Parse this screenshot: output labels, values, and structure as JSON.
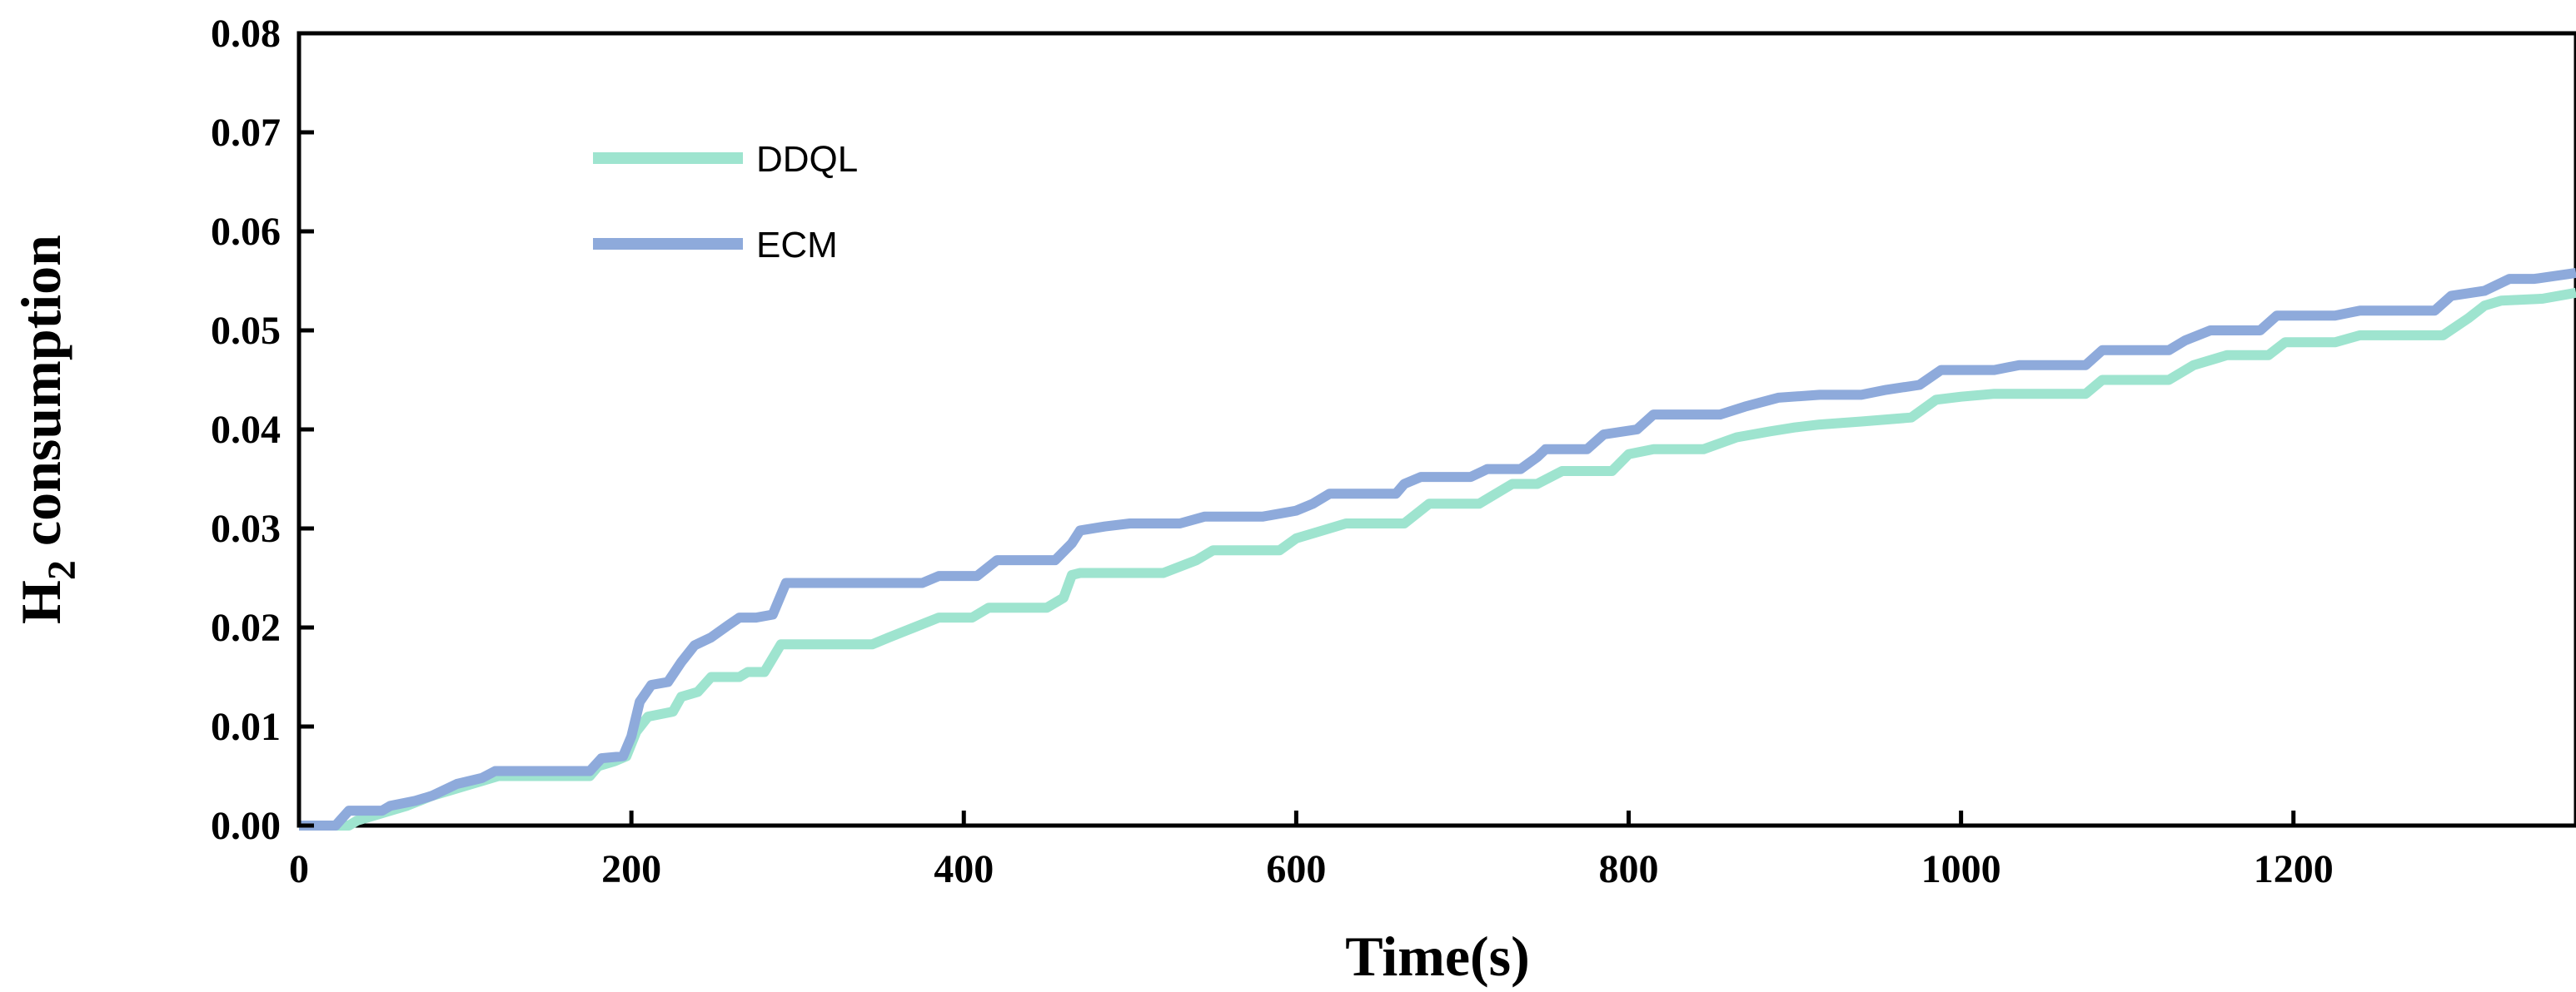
{
  "chart_data": {
    "type": "line",
    "title": "",
    "xlabel": "Time(s)",
    "ylabel_main": "H",
    "ylabel_sub": "2",
    "ylabel_rest": " consumption",
    "xlim": [
      0,
      1370
    ],
    "ylim": [
      0,
      0.08
    ],
    "xticks": [
      0,
      200,
      400,
      600,
      800,
      1000,
      1200
    ],
    "xtick_labels": [
      "0",
      "200",
      "400",
      "600",
      "800",
      "1000",
      "1200"
    ],
    "yticks": [
      0,
      0.01,
      0.02,
      0.03,
      0.04,
      0.05,
      0.06,
      0.07,
      0.08
    ],
    "ytick_labels": [
      "0.00",
      "0.01",
      "0.02",
      "0.03",
      "0.04",
      "0.05",
      "0.06",
      "0.07",
      "0.08"
    ],
    "grid": false,
    "legend_position": "top-left",
    "series": [
      {
        "name": "DDQL",
        "color": "#9ee4cf",
        "points": [
          [
            0,
            0
          ],
          [
            30,
            0
          ],
          [
            35,
            0.0005
          ],
          [
            45,
            0.001
          ],
          [
            55,
            0.0015
          ],
          [
            65,
            0.002
          ],
          [
            80,
            0.003
          ],
          [
            90,
            0.0035
          ],
          [
            100,
            0.004
          ],
          [
            110,
            0.0045
          ],
          [
            120,
            0.005
          ],
          [
            175,
            0.005
          ],
          [
            180,
            0.006
          ],
          [
            190,
            0.0065
          ],
          [
            197,
            0.007
          ],
          [
            203,
            0.0095
          ],
          [
            210,
            0.011
          ],
          [
            225,
            0.0115
          ],
          [
            230,
            0.013
          ],
          [
            240,
            0.0135
          ],
          [
            248,
            0.015
          ],
          [
            265,
            0.015
          ],
          [
            270,
            0.0155
          ],
          [
            280,
            0.0155
          ],
          [
            290,
            0.0183
          ],
          [
            345,
            0.0183
          ],
          [
            355,
            0.019
          ],
          [
            370,
            0.02
          ],
          [
            385,
            0.021
          ],
          [
            405,
            0.021
          ],
          [
            415,
            0.022
          ],
          [
            450,
            0.022
          ],
          [
            460,
            0.023
          ],
          [
            465,
            0.0253
          ],
          [
            470,
            0.0255
          ],
          [
            520,
            0.0255
          ],
          [
            540,
            0.0268
          ],
          [
            550,
            0.0278
          ],
          [
            590,
            0.0278
          ],
          [
            600,
            0.029
          ],
          [
            630,
            0.0305
          ],
          [
            665,
            0.0305
          ],
          [
            680,
            0.0325
          ],
          [
            710,
            0.0325
          ],
          [
            730,
            0.0345
          ],
          [
            745,
            0.0345
          ],
          [
            760,
            0.0358
          ],
          [
            790,
            0.0358
          ],
          [
            800,
            0.0375
          ],
          [
            815,
            0.038
          ],
          [
            845,
            0.038
          ],
          [
            865,
            0.0392
          ],
          [
            885,
            0.0398
          ],
          [
            900,
            0.0402
          ],
          [
            915,
            0.0405
          ],
          [
            940,
            0.0408
          ],
          [
            970,
            0.0412
          ],
          [
            985,
            0.043
          ],
          [
            1000,
            0.0433
          ],
          [
            1020,
            0.0436
          ],
          [
            1075,
            0.0436
          ],
          [
            1085,
            0.045
          ],
          [
            1125,
            0.045
          ],
          [
            1140,
            0.0465
          ],
          [
            1160,
            0.0475
          ],
          [
            1185,
            0.0475
          ],
          [
            1195,
            0.0488
          ],
          [
            1225,
            0.0488
          ],
          [
            1240,
            0.0495
          ],
          [
            1290,
            0.0495
          ],
          [
            1305,
            0.0512
          ],
          [
            1315,
            0.0525
          ],
          [
            1325,
            0.053
          ],
          [
            1350,
            0.0532
          ],
          [
            1370,
            0.0538
          ]
        ]
      },
      {
        "name": "ECM",
        "color": "#8eaadb",
        "points": [
          [
            0,
            0
          ],
          [
            22,
            0
          ],
          [
            30,
            0.0015
          ],
          [
            40,
            0.0015
          ],
          [
            50,
            0.0015
          ],
          [
            55,
            0.002
          ],
          [
            70,
            0.0025
          ],
          [
            80,
            0.003
          ],
          [
            95,
            0.0042
          ],
          [
            110,
            0.0048
          ],
          [
            118,
            0.0055
          ],
          [
            175,
            0.0055
          ],
          [
            182,
            0.0068
          ],
          [
            195,
            0.007
          ],
          [
            200,
            0.009
          ],
          [
            205,
            0.0125
          ],
          [
            212,
            0.0142
          ],
          [
            222,
            0.0145
          ],
          [
            230,
            0.0165
          ],
          [
            238,
            0.0182
          ],
          [
            248,
            0.019
          ],
          [
            258,
            0.0202
          ],
          [
            265,
            0.021
          ],
          [
            275,
            0.021
          ],
          [
            285,
            0.0213
          ],
          [
            293,
            0.0245
          ],
          [
            375,
            0.0245
          ],
          [
            385,
            0.0252
          ],
          [
            408,
            0.0252
          ],
          [
            420,
            0.0268
          ],
          [
            455,
            0.0268
          ],
          [
            465,
            0.0285
          ],
          [
            470,
            0.0298
          ],
          [
            485,
            0.0302
          ],
          [
            500,
            0.0305
          ],
          [
            530,
            0.0305
          ],
          [
            545,
            0.0312
          ],
          [
            580,
            0.0312
          ],
          [
            600,
            0.0318
          ],
          [
            610,
            0.0325
          ],
          [
            620,
            0.0335
          ],
          [
            660,
            0.0335
          ],
          [
            665,
            0.0345
          ],
          [
            675,
            0.0352
          ],
          [
            705,
            0.0352
          ],
          [
            715,
            0.036
          ],
          [
            735,
            0.036
          ],
          [
            745,
            0.0372
          ],
          [
            750,
            0.038
          ],
          [
            775,
            0.038
          ],
          [
            785,
            0.0395
          ],
          [
            805,
            0.04
          ],
          [
            815,
            0.0415
          ],
          [
            855,
            0.0415
          ],
          [
            870,
            0.0423
          ],
          [
            890,
            0.0432
          ],
          [
            915,
            0.0435
          ],
          [
            940,
            0.0435
          ],
          [
            955,
            0.044
          ],
          [
            975,
            0.0445
          ],
          [
            988,
            0.046
          ],
          [
            1020,
            0.046
          ],
          [
            1035,
            0.0465
          ],
          [
            1075,
            0.0465
          ],
          [
            1085,
            0.048
          ],
          [
            1125,
            0.048
          ],
          [
            1135,
            0.049
          ],
          [
            1150,
            0.05
          ],
          [
            1180,
            0.05
          ],
          [
            1190,
            0.0515
          ],
          [
            1225,
            0.0515
          ],
          [
            1240,
            0.052
          ],
          [
            1285,
            0.052
          ],
          [
            1295,
            0.0535
          ],
          [
            1315,
            0.054
          ],
          [
            1330,
            0.0552
          ],
          [
            1345,
            0.0552
          ],
          [
            1370,
            0.0558
          ]
        ]
      }
    ]
  }
}
